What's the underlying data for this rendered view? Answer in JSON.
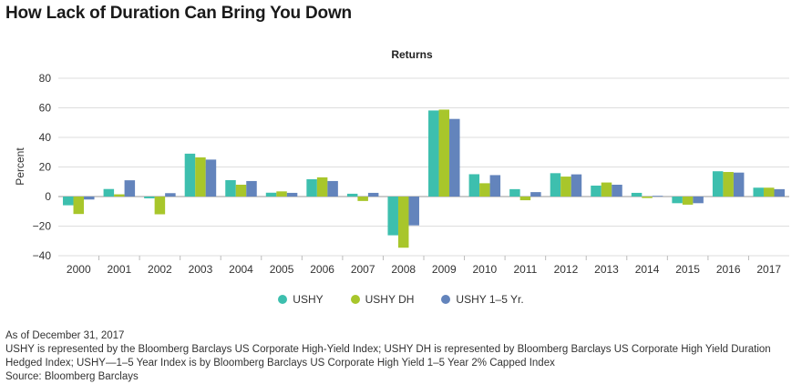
{
  "title": "How Lack of Duration Can Bring You Down",
  "chart_data": {
    "type": "bar",
    "title": "Returns",
    "xlabel": "",
    "ylabel": "Percent",
    "ylim": [
      -40,
      80
    ],
    "yticks": [
      -40,
      -20,
      0,
      20,
      40,
      60,
      80
    ],
    "grid": true,
    "legend_position": "bottom",
    "categories": [
      "2000",
      "2001",
      "2002",
      "2003",
      "2004",
      "2005",
      "2006",
      "2007",
      "2008",
      "2009",
      "2010",
      "2011",
      "2012",
      "2013",
      "2014",
      "2015",
      "2016",
      "2017"
    ],
    "series": [
      {
        "name": "USHY",
        "color": "#3dbfae",
        "values": [
          -5.9,
          5.1,
          -1.2,
          29.0,
          11.1,
          2.6,
          11.7,
          1.9,
          -26.2,
          58.2,
          15.1,
          5.0,
          15.8,
          7.4,
          2.5,
          -4.5,
          17.1,
          6.0
        ]
      },
      {
        "name": "USHY DH",
        "color": "#a8c62b",
        "values": [
          -11.8,
          1.5,
          -12.0,
          26.5,
          8.0,
          3.5,
          13.0,
          -3.0,
          -34.6,
          58.8,
          9.0,
          -2.5,
          13.5,
          9.5,
          -1.0,
          -5.5,
          16.6,
          6.0
        ]
      },
      {
        "name": "USHY 1–5 Yr.",
        "color": "#6384bc",
        "values": [
          -2.0,
          11.0,
          2.3,
          25.0,
          10.5,
          2.5,
          10.5,
          2.5,
          -19.5,
          52.5,
          14.5,
          3.0,
          15.0,
          8.0,
          0.5,
          -4.5,
          16.2,
          5.0
        ]
      }
    ]
  },
  "footer": {
    "line1": "As of December 31, 2017",
    "line2": "USHY is represented by the Bloomberg Barclays US Corporate High-Yield Index; USHY DH is represented by Bloomberg Barclays US Corporate High Yield Duration Hedged Index; USHY—1–5 Year Index is by Bloomberg Barclays US Corporate High Yield 1–5 Year 2% Capped Index",
    "line3": "Source: Bloomberg Barclays"
  }
}
